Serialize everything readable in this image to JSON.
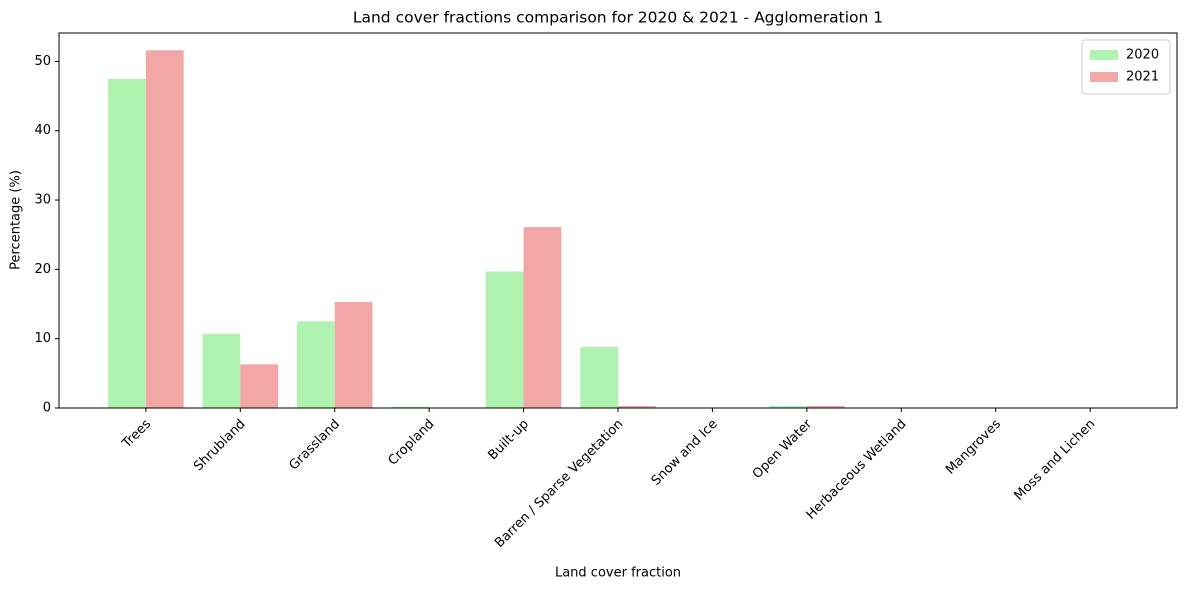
{
  "chart_data": {
    "type": "bar",
    "title": "Land cover fractions comparison for 2020 & 2021 - Agglomeration 1",
    "x_label": "Land cover fraction",
    "y_label": "Percentage (%)",
    "categories": [
      "Trees",
      "Shrubland",
      "Grassland",
      "Cropland",
      "Built-up",
      "Barren / Sparse Vegetation",
      "Snow and Ice",
      "Open Water",
      "Herbaceous Wetland",
      "Mangroves",
      "Moss and Lichen"
    ],
    "series": [
      {
        "name": "2020",
        "color": "#b0f2b0",
        "values": [
          47.5,
          10.7,
          12.5,
          0.2,
          19.7,
          8.8,
          0,
          0.3,
          0,
          0,
          0
        ]
      },
      {
        "name": "2021",
        "color": "#f2a6a6",
        "values": [
          51.6,
          6.3,
          15.3,
          0,
          26.1,
          0.3,
          0,
          0.3,
          0,
          0,
          0
        ]
      }
    ],
    "ylim": [
      0,
      54.1
    ],
    "yticks": [
      0,
      10,
      20,
      30,
      40,
      50
    ],
    "legend": "upper right"
  }
}
